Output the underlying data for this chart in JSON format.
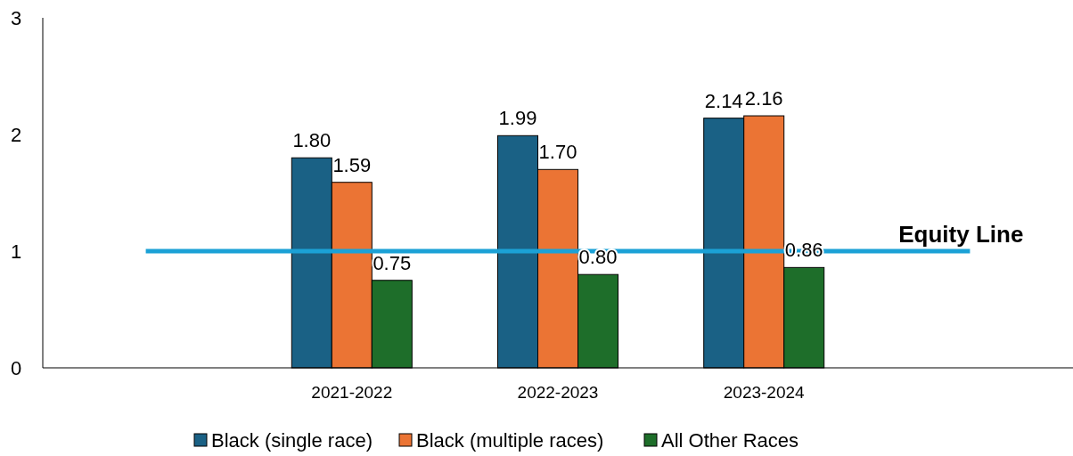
{
  "chart_data": {
    "type": "bar",
    "categories": [
      null,
      "2021-2022",
      "2022-2023",
      "2023-2024",
      null
    ],
    "series": [
      {
        "name": "Black (single race)",
        "color": "#1a6185",
        "values": [
          null,
          1.8,
          1.99,
          2.14,
          null
        ],
        "value_labels": [
          null,
          "1.80",
          "1.99",
          "2.14",
          null
        ]
      },
      {
        "name": "Black (multiple races)",
        "color": "#eb7434",
        "values": [
          null,
          1.59,
          1.7,
          2.16,
          null
        ],
        "value_labels": [
          null,
          "1.59",
          "1.70",
          "2.16",
          null
        ]
      },
      {
        "name": "All Other Races",
        "color": "#1e6e2a",
        "values": [
          null,
          0.75,
          0.8,
          0.86,
          null
        ],
        "value_labels": [
          null,
          "0.75",
          "0.80",
          "0.86",
          null
        ]
      },
      {
        "name": "Equity Line",
        "type": "line",
        "color": "#1ba1d6",
        "values": [
          1,
          1,
          1,
          1,
          1
        ],
        "marker": "none"
      }
    ],
    "ylim": [
      0,
      3
    ],
    "yticks": [
      0,
      1,
      2,
      3
    ],
    "grid": false,
    "legend": "bottom"
  }
}
